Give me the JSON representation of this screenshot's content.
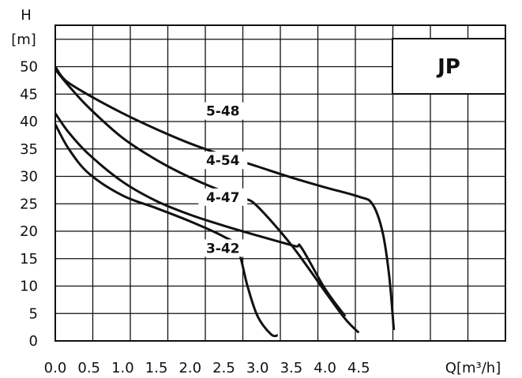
{
  "chart_data": {
    "type": "line",
    "title": "JP",
    "xlabel": "Q[m³/h]",
    "ylabel_line1": "H",
    "ylabel_line2": "[m]",
    "xlim": [
      0,
      5
    ],
    "ylim": [
      0,
      50
    ],
    "grid": true,
    "x_ticks": [
      0.0,
      0.5,
      1.0,
      1.5,
      2.0,
      2.5,
      3.0,
      3.5,
      4.0,
      4.5
    ],
    "x_tick_labels": [
      "0.0",
      "0.5",
      "1.0",
      "1.5",
      "2.0",
      "2.5",
      "3.0",
      "3.5",
      "4.0",
      "4.5"
    ],
    "y_ticks": [
      0,
      5,
      10,
      15,
      20,
      25,
      30,
      35,
      40,
      45,
      50
    ],
    "y_tick_labels": [
      "0",
      "5",
      "10",
      "15",
      "20",
      "25",
      "30",
      "35",
      "40",
      "45",
      "50"
    ],
    "series": [
      {
        "name": "5-48",
        "label_at": [
          2.45,
          41.2
        ],
        "points": [
          [
            0.0,
            50.0
          ],
          [
            0.15,
            47.5
          ],
          [
            0.5,
            44.8
          ],
          [
            1.0,
            41.5
          ],
          [
            1.5,
            38.6
          ],
          [
            2.0,
            36.0
          ],
          [
            2.5,
            33.8
          ],
          [
            3.0,
            31.8
          ],
          [
            3.5,
            29.8
          ],
          [
            4.0,
            28.0
          ],
          [
            4.5,
            26.3
          ],
          [
            4.7,
            25.0
          ],
          [
            4.85,
            20.0
          ],
          [
            4.95,
            12.0
          ],
          [
            5.02,
            2.0
          ]
        ]
      },
      {
        "name": "4-54",
        "label_at": [
          2.45,
          32.2
        ],
        "points": [
          [
            0.0,
            49.5
          ],
          [
            0.2,
            46.5
          ],
          [
            0.5,
            42.5
          ],
          [
            1.0,
            37.0
          ],
          [
            1.5,
            33.0
          ],
          [
            2.0,
            29.8
          ],
          [
            2.5,
            27.2
          ],
          [
            2.8,
            26.0
          ],
          [
            3.0,
            24.5
          ],
          [
            3.5,
            17.5
          ],
          [
            4.0,
            9.0
          ],
          [
            4.3,
            4.0
          ],
          [
            4.5,
            1.5
          ]
        ]
      },
      {
        "name": "4-47",
        "label_at": [
          2.45,
          25.5
        ],
        "points": [
          [
            0.0,
            41.5
          ],
          [
            0.2,
            38.0
          ],
          [
            0.5,
            34.0
          ],
          [
            1.0,
            29.0
          ],
          [
            1.5,
            25.5
          ],
          [
            2.0,
            23.0
          ],
          [
            2.5,
            21.0
          ],
          [
            3.0,
            19.2
          ],
          [
            3.55,
            17.3
          ],
          [
            3.65,
            17.0
          ],
          [
            4.0,
            9.5
          ],
          [
            4.3,
            4.5
          ]
        ]
      },
      {
        "name": "3-42",
        "label_at": [
          2.45,
          16.2
        ],
        "points": [
          [
            0.0,
            39.5
          ],
          [
            0.2,
            35.0
          ],
          [
            0.5,
            30.5
          ],
          [
            1.0,
            26.5
          ],
          [
            1.5,
            24.2
          ],
          [
            2.0,
            21.8
          ],
          [
            2.5,
            19.0
          ],
          [
            2.7,
            17.0
          ],
          [
            2.85,
            10.0
          ],
          [
            3.0,
            4.5
          ],
          [
            3.2,
            1.2
          ],
          [
            3.3,
            1.0
          ]
        ]
      }
    ]
  }
}
